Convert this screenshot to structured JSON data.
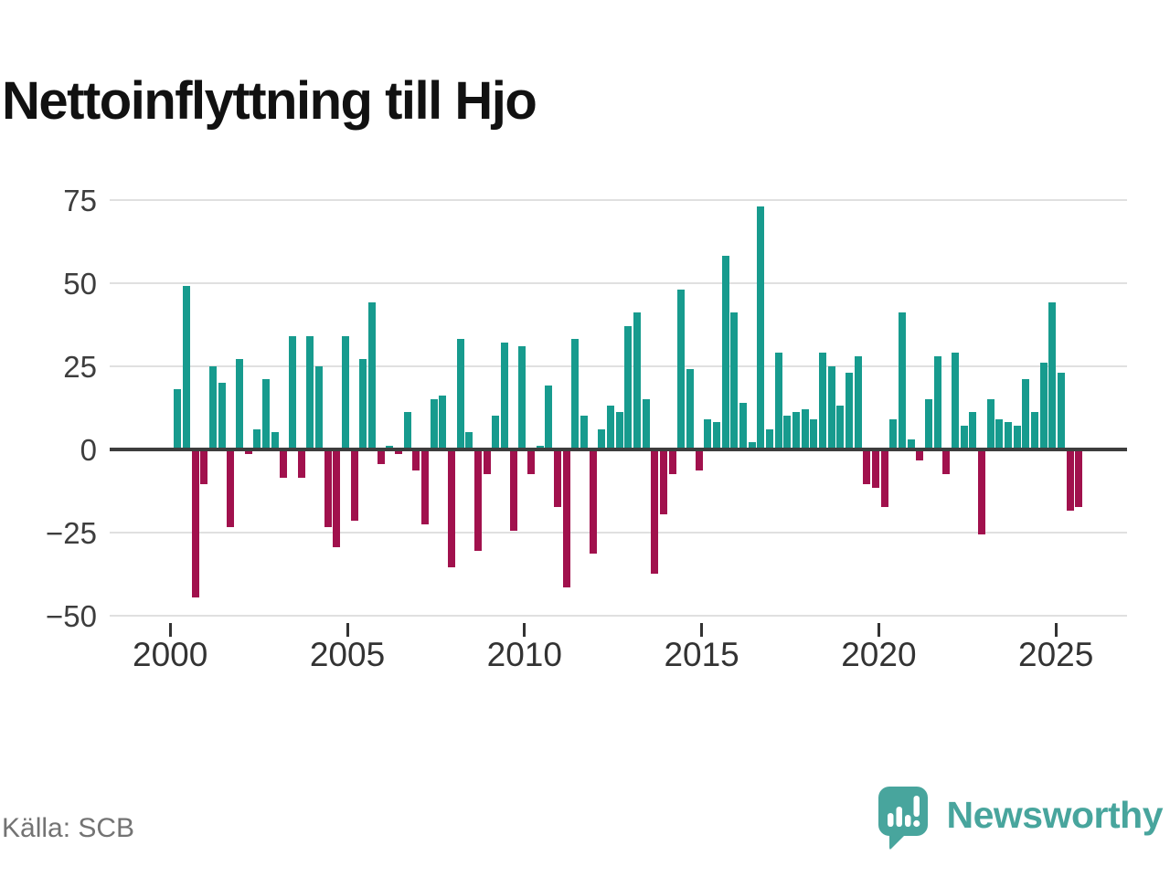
{
  "title": "Nettoinflyttning till Hjo",
  "source": {
    "label": "Källa: SCB"
  },
  "brand": {
    "name": "Newsworthy",
    "icon": "newsworthy-speech-bubble-chart-icon",
    "color": "#48a59d"
  },
  "colors": {
    "positive": "#179b8e",
    "negative": "#a1114d",
    "grid": "#e0e0e0",
    "axis": "#3d3d3d",
    "tick_text": "#333333",
    "title_text": "#111111",
    "source_text": "#737373"
  },
  "chart_data": {
    "type": "bar",
    "title": "Nettoinflyttning till Hjo",
    "frequency": "quarterly",
    "x_range": [
      "2000 Q1",
      "2025 Q3"
    ],
    "ylim": [
      -50,
      75
    ],
    "grid": true,
    "legend_position": "none",
    "positive_color": "#179b8e",
    "negative_color": "#a1114d",
    "yticks": [
      {
        "value": 75,
        "label": "75"
      },
      {
        "value": 50,
        "label": "50"
      },
      {
        "value": 25,
        "label": "25"
      },
      {
        "value": 0,
        "label": "0"
      },
      {
        "value": -25,
        "label": "−25"
      },
      {
        "value": -50,
        "label": "−50"
      }
    ],
    "xticks": [
      {
        "value": 2000,
        "label": "2000"
      },
      {
        "value": 2005,
        "label": "2005"
      },
      {
        "value": 2010,
        "label": "2010"
      },
      {
        "value": 2015,
        "label": "2015"
      },
      {
        "value": 2020,
        "label": "2020"
      },
      {
        "value": 2025,
        "label": "2025"
      }
    ],
    "by_year": [
      {
        "year": 2000,
        "values": [
          18,
          49,
          -44,
          -10
        ]
      },
      {
        "year": 2001,
        "values": [
          25,
          20,
          -23,
          27
        ]
      },
      {
        "year": 2002,
        "values": [
          -1,
          6,
          21,
          5
        ]
      },
      {
        "year": 2003,
        "values": [
          -8,
          34,
          -8,
          34
        ]
      },
      {
        "year": 2004,
        "values": [
          25,
          -23,
          -29,
          34
        ]
      },
      {
        "year": 2005,
        "values": [
          -21,
          27,
          44,
          -4
        ]
      },
      {
        "year": 2006,
        "values": [
          1,
          -1,
          11,
          -6
        ]
      },
      {
        "year": 2007,
        "values": [
          -22,
          15,
          16,
          -35
        ]
      },
      {
        "year": 2008,
        "values": [
          33,
          5,
          -30,
          -7
        ]
      },
      {
        "year": 2009,
        "values": [
          10,
          32,
          -24,
          31
        ]
      },
      {
        "year": 2010,
        "values": [
          -7,
          1,
          19,
          -17
        ]
      },
      {
        "year": 2011,
        "values": [
          -41,
          33,
          10,
          -31
        ]
      },
      {
        "year": 2012,
        "values": [
          6,
          13,
          11,
          37
        ]
      },
      {
        "year": 2013,
        "values": [
          41,
          15,
          -37,
          -19
        ]
      },
      {
        "year": 2014,
        "values": [
          -7,
          48,
          24,
          -6
        ]
      },
      {
        "year": 2015,
        "values": [
          9,
          8,
          58,
          41
        ]
      },
      {
        "year": 2016,
        "values": [
          14,
          2,
          73,
          6
        ]
      },
      {
        "year": 2017,
        "values": [
          29,
          10,
          11,
          12
        ]
      },
      {
        "year": 2018,
        "values": [
          9,
          29,
          25,
          13
        ]
      },
      {
        "year": 2019,
        "values": [
          23,
          28,
          -10,
          -11
        ]
      },
      {
        "year": 2020,
        "values": [
          -17,
          9,
          41,
          3
        ]
      },
      {
        "year": 2021,
        "values": [
          -3,
          15,
          28,
          -7
        ]
      },
      {
        "year": 2022,
        "values": [
          29,
          7,
          11,
          -25
        ]
      },
      {
        "year": 2023,
        "values": [
          15,
          9,
          8,
          7
        ]
      },
      {
        "year": 2024,
        "values": [
          21,
          11,
          26,
          44
        ]
      },
      {
        "year": 2025,
        "values": [
          23,
          -18,
          -17
        ]
      }
    ]
  }
}
